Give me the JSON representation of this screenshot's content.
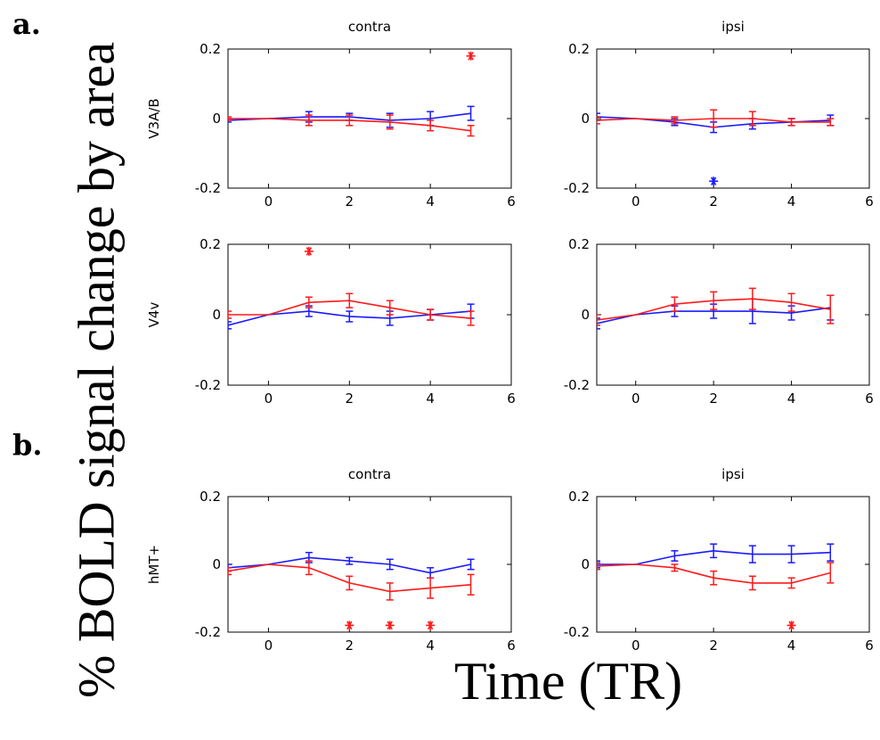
{
  "figure": {
    "label_a": "a.",
    "label_b": "b.",
    "ylabel": "% BOLD signal change by area",
    "xlabel": "Time (TR)"
  },
  "colors": {
    "blue": "#1a1aff",
    "red": "#ff1a1a",
    "axis": "#000000"
  },
  "chart_data": [
    {
      "type": "line",
      "title": "contra",
      "row_label": "V3A/B",
      "xlim": [
        -1,
        6
      ],
      "ylim": [
        -0.2,
        0.2
      ],
      "xticks": [
        "0",
        "2",
        "4",
        "6"
      ],
      "yticks": [
        "-0.2",
        "0",
        "0.2"
      ],
      "x": [
        -1,
        0,
        1,
        2,
        3,
        4,
        5
      ],
      "series": [
        {
          "color": "blue",
          "values": [
            -0.005,
            0,
            0.005,
            0.005,
            -0.005,
            0.0,
            0.015
          ],
          "err": [
            0.005,
            0,
            0.015,
            0.01,
            0.02,
            0.02,
            0.02
          ]
        },
        {
          "color": "red",
          "values": [
            0.0,
            0,
            -0.005,
            -0.005,
            -0.01,
            -0.02,
            -0.035
          ],
          "err": [
            0.005,
            0,
            0.015,
            0.015,
            0.02,
            0.015,
            0.015
          ]
        }
      ],
      "markers": [
        {
          "x": 5,
          "y": 0.18,
          "color": "red"
        }
      ]
    },
    {
      "type": "line",
      "title": "ipsi",
      "row_label": "",
      "xlim": [
        -1,
        6
      ],
      "ylim": [
        -0.2,
        0.2
      ],
      "xticks": [
        "0",
        "2",
        "4",
        "6"
      ],
      "yticks": [
        "-0.2",
        "0",
        "0.2"
      ],
      "x": [
        -1,
        0,
        1,
        2,
        3,
        4,
        5
      ],
      "series": [
        {
          "color": "blue",
          "values": [
            0.005,
            0,
            -0.01,
            -0.025,
            -0.015,
            -0.01,
            -0.005
          ],
          "err": [
            0.01,
            0,
            0.01,
            0.015,
            0.015,
            0.01,
            0.015
          ]
        },
        {
          "color": "red",
          "values": [
            -0.005,
            0,
            -0.005,
            0.0,
            0.0,
            -0.01,
            -0.01
          ],
          "err": [
            0.01,
            0,
            0.01,
            0.025,
            0.02,
            0.01,
            0.01
          ]
        }
      ],
      "markers": [
        {
          "x": 2,
          "y": -0.18,
          "color": "blue"
        }
      ]
    },
    {
      "type": "line",
      "title": "",
      "row_label": "V4v",
      "xlim": [
        -1,
        6
      ],
      "ylim": [
        -0.2,
        0.2
      ],
      "xticks": [
        "0",
        "2",
        "4",
        "6"
      ],
      "yticks": [
        "-0.2",
        "0",
        "0.2"
      ],
      "x": [
        -1,
        0,
        1,
        2,
        3,
        4,
        5
      ],
      "series": [
        {
          "color": "blue",
          "values": [
            -0.03,
            0,
            0.01,
            -0.005,
            -0.01,
            0.0,
            0.01
          ],
          "err": [
            0.01,
            0,
            0.015,
            0.015,
            0.02,
            0.015,
            0.02
          ]
        },
        {
          "color": "red",
          "values": [
            0.0,
            0,
            0.035,
            0.04,
            0.02,
            0.0,
            -0.01
          ],
          "err": [
            0.01,
            0,
            0.015,
            0.02,
            0.02,
            0.015,
            0.02
          ]
        }
      ],
      "markers": [
        {
          "x": 1,
          "y": 0.18,
          "color": "red"
        }
      ]
    },
    {
      "type": "line",
      "title": "",
      "row_label": "",
      "xlim": [
        -1,
        6
      ],
      "ylim": [
        -0.2,
        0.2
      ],
      "xticks": [
        "0",
        "2",
        "4",
        "6"
      ],
      "yticks": [
        "-0.2",
        "0",
        "0.2"
      ],
      "x": [
        -1,
        0,
        1,
        2,
        3,
        4,
        5
      ],
      "series": [
        {
          "color": "blue",
          "values": [
            -0.025,
            0,
            0.01,
            0.01,
            0.01,
            0.005,
            0.02
          ],
          "err": [
            0.015,
            0,
            0.015,
            0.02,
            0.035,
            0.02,
            0.035
          ]
        },
        {
          "color": "red",
          "values": [
            -0.015,
            0,
            0.03,
            0.04,
            0.045,
            0.035,
            0.015
          ],
          "err": [
            0.015,
            0,
            0.02,
            0.025,
            0.03,
            0.025,
            0.04
          ]
        }
      ],
      "markers": []
    },
    {
      "type": "line",
      "title": "contra",
      "row_label": "hMT+",
      "xlim": [
        -1,
        6
      ],
      "ylim": [
        -0.2,
        0.2
      ],
      "xticks": [
        "0",
        "2",
        "4",
        "6"
      ],
      "yticks": [
        "-0.2",
        "0",
        "0.2"
      ],
      "x": [
        -1,
        0,
        1,
        2,
        3,
        4,
        5
      ],
      "series": [
        {
          "color": "blue",
          "values": [
            -0.01,
            0,
            0.02,
            0.01,
            0.0,
            -0.025,
            0.0
          ],
          "err": [
            0.01,
            0,
            0.015,
            0.01,
            0.015,
            0.015,
            0.015
          ]
        },
        {
          "color": "red",
          "values": [
            -0.02,
            0,
            -0.01,
            -0.055,
            -0.08,
            -0.07,
            -0.06
          ],
          "err": [
            0.01,
            0,
            0.02,
            0.02,
            0.025,
            0.03,
            0.03
          ]
        }
      ],
      "markers": [
        {
          "x": 2,
          "y": -0.18,
          "color": "red"
        },
        {
          "x": 3,
          "y": -0.18,
          "color": "red"
        },
        {
          "x": 4,
          "y": -0.18,
          "color": "red"
        }
      ]
    },
    {
      "type": "line",
      "title": "ipsi",
      "row_label": "",
      "xlim": [
        -1,
        6
      ],
      "ylim": [
        -0.2,
        0.2
      ],
      "xticks": [
        "0",
        "2",
        "4",
        "6"
      ],
      "yticks": [
        "-0.2",
        "0",
        "0.2"
      ],
      "x": [
        -1,
        0,
        1,
        2,
        3,
        4,
        5
      ],
      "series": [
        {
          "color": "blue",
          "values": [
            0.0,
            0,
            0.025,
            0.04,
            0.03,
            0.03,
            0.035
          ],
          "err": [
            0.01,
            0,
            0.015,
            0.02,
            0.025,
            0.025,
            0.025
          ]
        },
        {
          "color": "red",
          "values": [
            -0.005,
            0,
            -0.01,
            -0.04,
            -0.055,
            -0.055,
            -0.025
          ],
          "err": [
            0.01,
            0,
            0.01,
            0.02,
            0.02,
            0.015,
            0.03
          ]
        }
      ],
      "markers": [
        {
          "x": 4,
          "y": -0.18,
          "color": "red"
        }
      ]
    }
  ]
}
